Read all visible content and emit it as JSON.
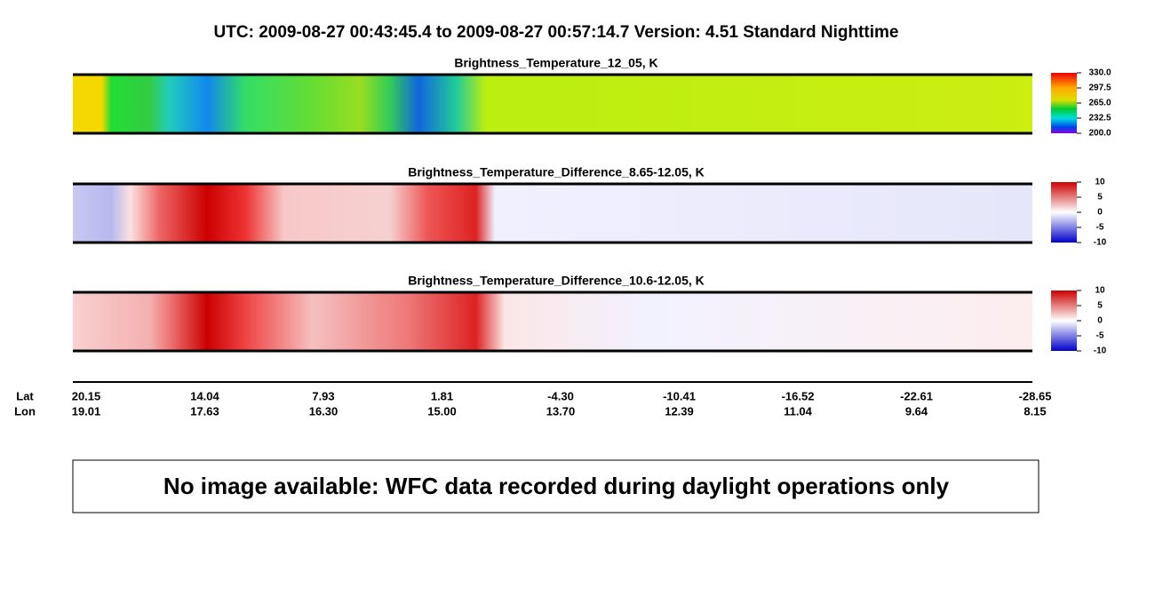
{
  "header": {
    "title": "UTC:  2009-08-27   00:43:45.4  to  2009-08-27   00:57:14.7    Version: 4.51  Standard Nighttime"
  },
  "panels": [
    {
      "title": "Brightness_Temperature_12_05, K",
      "colorbar_ticks": [
        "330.0",
        "297.5",
        "265.0",
        "232.5",
        "200.0"
      ]
    },
    {
      "title": "Brightness_Temperature_Difference_8.65-12.05, K",
      "colorbar_ticks": [
        "10",
        "5",
        "0",
        "-5",
        "-10"
      ]
    },
    {
      "title": "Brightness_Temperature_Difference_10.6-12.05, K",
      "colorbar_ticks": [
        "10",
        "5",
        "0",
        "-5",
        "-10"
      ]
    }
  ],
  "axis": {
    "lat_label": "Lat",
    "lon_label": "Lon",
    "lat": [
      "20.15",
      "14.04",
      "7.93",
      "1.81",
      "-4.30",
      "-10.41",
      "-16.52",
      "-22.61",
      "-28.65"
    ],
    "lon": [
      "19.01",
      "17.63",
      "16.30",
      "15.00",
      "13.70",
      "12.39",
      "11.04",
      "9.64",
      "8.15"
    ]
  },
  "message": "No image available: WFC data recorded during daylight operations only"
}
